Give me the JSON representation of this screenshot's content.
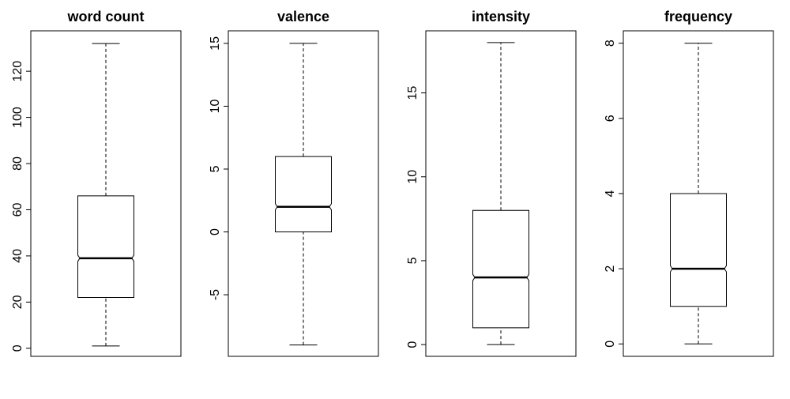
{
  "chart_data": [
    {
      "type": "boxplot",
      "title": "word count",
      "notched": true,
      "min": 1,
      "q1": 22,
      "median": 39,
      "q3": 66,
      "max": 132,
      "ylim": [
        -3.5,
        137.5
      ],
      "yticks": [
        0,
        20,
        40,
        60,
        80,
        100,
        120
      ],
      "ytick_labels": [
        "0",
        "20",
        "40",
        "60",
        "80",
        "100",
        "120"
      ]
    },
    {
      "type": "boxplot",
      "title": "valence",
      "notched": true,
      "min": -9,
      "q1": 0,
      "median": 2,
      "q3": 6,
      "max": 15,
      "ylim": [
        -9.9,
        16.0
      ],
      "yticks": [
        -5,
        0,
        5,
        10,
        15
      ],
      "ytick_labels": [
        "-5",
        "0",
        "5",
        "10",
        "15"
      ]
    },
    {
      "type": "boxplot",
      "title": "intensity",
      "notched": true,
      "min": 0,
      "q1": 1,
      "median": 4,
      "q3": 8,
      "max": 18,
      "ylim": [
        -0.7,
        18.7
      ],
      "yticks": [
        0,
        5,
        10,
        15
      ],
      "ytick_labels": [
        "0",
        "5",
        "10",
        "15"
      ]
    },
    {
      "type": "boxplot",
      "title": "frequency",
      "notched": true,
      "min": 0,
      "q1": 1,
      "median": 2,
      "q3": 4,
      "max": 8,
      "ylim": [
        -0.33,
        8.33
      ],
      "yticks": [
        0,
        2,
        4,
        6,
        8
      ],
      "ytick_labels": [
        "0",
        "2",
        "4",
        "6",
        "8"
      ]
    }
  ]
}
